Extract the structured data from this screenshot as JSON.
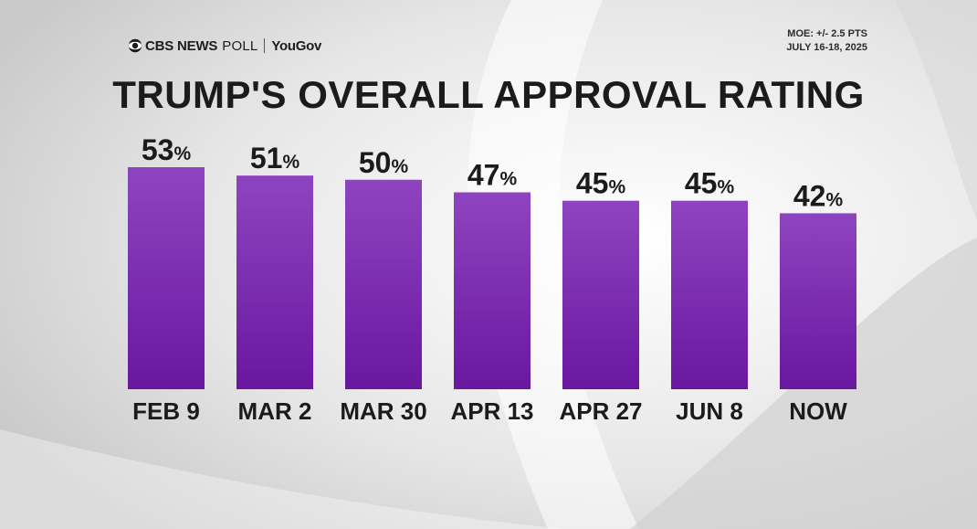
{
  "branding": {
    "network": "CBS NEWS",
    "poll": "POLL",
    "partner": "YouGov"
  },
  "methodology": {
    "moe": "MOE: +/- 2.5 PTS",
    "dates": "JULY 16-18, 2025"
  },
  "colors": {
    "bar_top": "#8e44c0",
    "bar_bottom": "#6a17a0",
    "background": "#e9e9e9"
  },
  "chart_data": {
    "type": "bar",
    "title": "TRUMP'S OVERALL APPROVAL RATING",
    "categories": [
      "FEB 9",
      "MAR 2",
      "MAR 30",
      "APR 13",
      "APR 27",
      "JUN 8",
      "NOW"
    ],
    "values": [
      53,
      51,
      50,
      47,
      45,
      45,
      42
    ],
    "value_suffix": "%",
    "xlabel": "",
    "ylabel": "",
    "ylim": [
      0,
      53
    ],
    "grid": false,
    "legend": "none"
  }
}
